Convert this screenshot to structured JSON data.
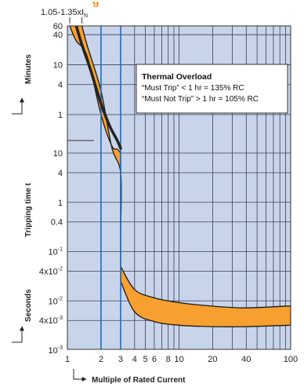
{
  "chart_data": {
    "type": "area",
    "title_fragment": "g",
    "xlabel": "Multiple of Rated Current",
    "x_scale": "log",
    "xlim": [
      1,
      100
    ],
    "x_ticks": [
      "1",
      "2",
      "3",
      "4",
      "5",
      "6",
      "8",
      "10",
      "20",
      "40",
      "100"
    ],
    "x_highlight_ticks": [
      "2",
      "3"
    ],
    "ylabel": "Tripping time t",
    "ylabel_minutes": "Minutes",
    "ylabel_seconds": "Seconds",
    "y_scale": "log",
    "y_ticks_minutes": [
      "60",
      "40",
      "10",
      "4",
      "1"
    ],
    "y_ticks_seconds": [
      "10",
      "4",
      "1",
      "0.4",
      "10-1",
      "4x10-2",
      "10-2",
      "4x10-3",
      "10-3"
    ],
    "top_range_label": "1.05-1.35xI",
    "top_range_label_sub": "N",
    "top_range": [
      1.05,
      1.35
    ],
    "colors": {
      "band": "#f7a030",
      "background": "#c8d4ea",
      "highlight": "#1f6cc0",
      "curve": "#222222"
    },
    "series": [
      {
        "points_seconds_lower": [
          [
            1.35,
            3600
          ],
          [
            1.5,
            1500
          ],
          [
            2.0,
            180
          ],
          [
            2.5,
            13
          ],
          [
            3.0,
            4
          ],
          [
            3.0,
            0.3
          ],
          [
            3.0,
            0.025
          ],
          [
            4,
            0.006
          ],
          [
            6,
            0.0038
          ],
          [
            10,
            0.0032
          ],
          [
            20,
            0.003
          ],
          [
            40,
            0.003
          ],
          [
            100,
            0.0032
          ]
        ]
      },
      {
        "points_seconds_upper": [
          [
            1.05,
            3600
          ],
          [
            1.2,
            1800
          ],
          [
            1.5,
            900
          ],
          [
            2.0,
            60
          ],
          [
            2.5,
            14
          ],
          [
            2.8,
            12
          ],
          [
            3.0,
            10
          ],
          [
            3.0,
            1
          ],
          [
            3.0,
            0.05
          ],
          [
            4,
            0.017
          ],
          [
            6,
            0.0115
          ],
          [
            10,
            0.0092
          ],
          [
            20,
            0.0078
          ],
          [
            40,
            0.0072
          ],
          [
            100,
            0.0079
          ]
        ]
      },
      {
        "points_seconds_curve": [
          [
            1.2,
            3600
          ],
          [
            1.35,
            1500
          ],
          [
            1.6,
            500
          ],
          [
            2.0,
            100
          ],
          [
            2.4,
            35
          ],
          [
            2.8,
            18
          ],
          [
            3.0,
            12.5
          ]
        ]
      }
    ],
    "annotation": {
      "title": "Thermal Overload",
      "lines": [
        "“Must Trip” < 1 hr = 135% RC",
        "“Must Not Trip” > 1 hr = 105% RC"
      ]
    }
  }
}
